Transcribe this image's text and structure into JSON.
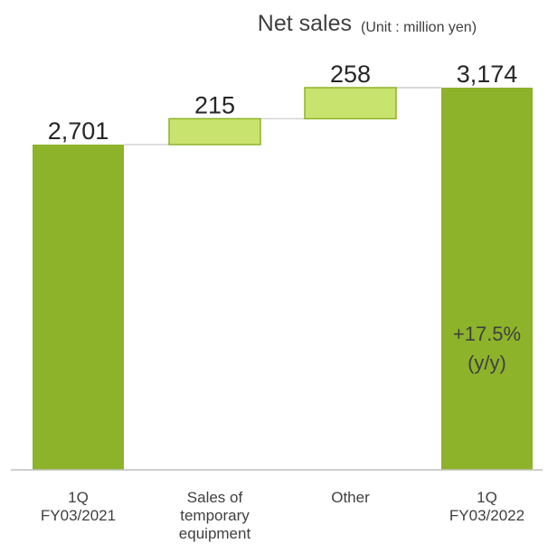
{
  "chart_data": {
    "type": "waterfall",
    "title": "Net sales",
    "unit": "(Unit : million yen)",
    "ylim": [
      0,
      3174
    ],
    "grid": false,
    "bars": [
      {
        "label": "1Q\nFY03/2021",
        "value": 2701,
        "kind": "total",
        "display": "2,701"
      },
      {
        "label": "Sales of\ntemporary\nequipment",
        "value": 215,
        "kind": "increase",
        "display": "215"
      },
      {
        "label": "Other",
        "value": 258,
        "kind": "increase",
        "display": "258"
      },
      {
        "label": "1Q\nFY03/2022",
        "value": 3174,
        "kind": "total",
        "display": "3,174"
      }
    ],
    "annotation": {
      "bar_index": 3,
      "lines": [
        "+17.5%",
        "(y/y)"
      ]
    },
    "colors": {
      "total_fill": "#8db32a",
      "increase_fill": "#c9e46e",
      "increase_stroke": "#8db32a",
      "connector": "#d4d4d4",
      "axis": "#bfbfbf",
      "value_text": "#262626",
      "label_text": "#404040",
      "annotation_text": "#404040"
    }
  }
}
